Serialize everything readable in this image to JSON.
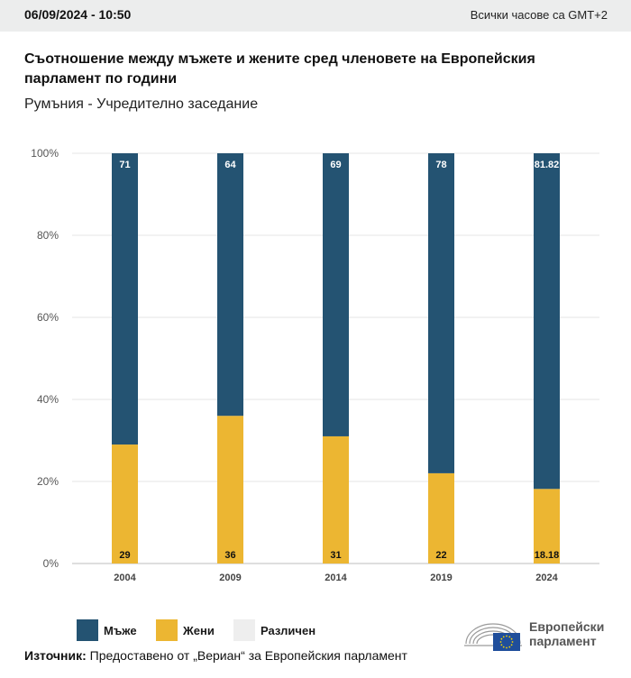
{
  "header": {
    "timestamp": "06/09/2024 - 10:50",
    "timezone_note": "Всички часове са GMT+2"
  },
  "title": "Съотношение между мъжете и жените сред членовете на Европейския парламент по години",
  "subtitle": "Румъния - Учредително заседание",
  "colors": {
    "men": "#245372",
    "women": "#ecb632",
    "various": "#eeeeee"
  },
  "legend": [
    {
      "label": "Мъже",
      "color": "#245372"
    },
    {
      "label": "Жени",
      "color": "#ecb632"
    },
    {
      "label": "Различен",
      "color": "#eeeeee"
    }
  ],
  "source": {
    "label": "Източник:",
    "text": "Предоставено от „Вериан“ за Европейския парламент"
  },
  "logo": {
    "line1": "Европейски",
    "line2": "парламент"
  },
  "chart_data": {
    "type": "bar",
    "stacked": true,
    "categories": [
      "2004",
      "2009",
      "2014",
      "2019",
      "2024"
    ],
    "series": [
      {
        "name": "Мъже",
        "values": [
          71,
          64,
          69,
          78,
          81.82
        ],
        "labels": [
          "71",
          "64",
          "69",
          "78",
          "81.82"
        ],
        "color": "#245372"
      },
      {
        "name": "Жени",
        "values": [
          29,
          36,
          31,
          22,
          18.18
        ],
        "labels": [
          "29",
          "36",
          "31",
          "22",
          "18.18"
        ],
        "color": "#ecb632"
      },
      {
        "name": "Различен",
        "values": [
          0,
          0,
          0,
          0,
          0
        ],
        "color": "#eeeeee"
      }
    ],
    "ylim": [
      0,
      100
    ],
    "yticks": [
      "0%",
      "20%",
      "40%",
      "60%",
      "80%",
      "100%"
    ],
    "grid": true,
    "legend_position": "bottom-left"
  }
}
